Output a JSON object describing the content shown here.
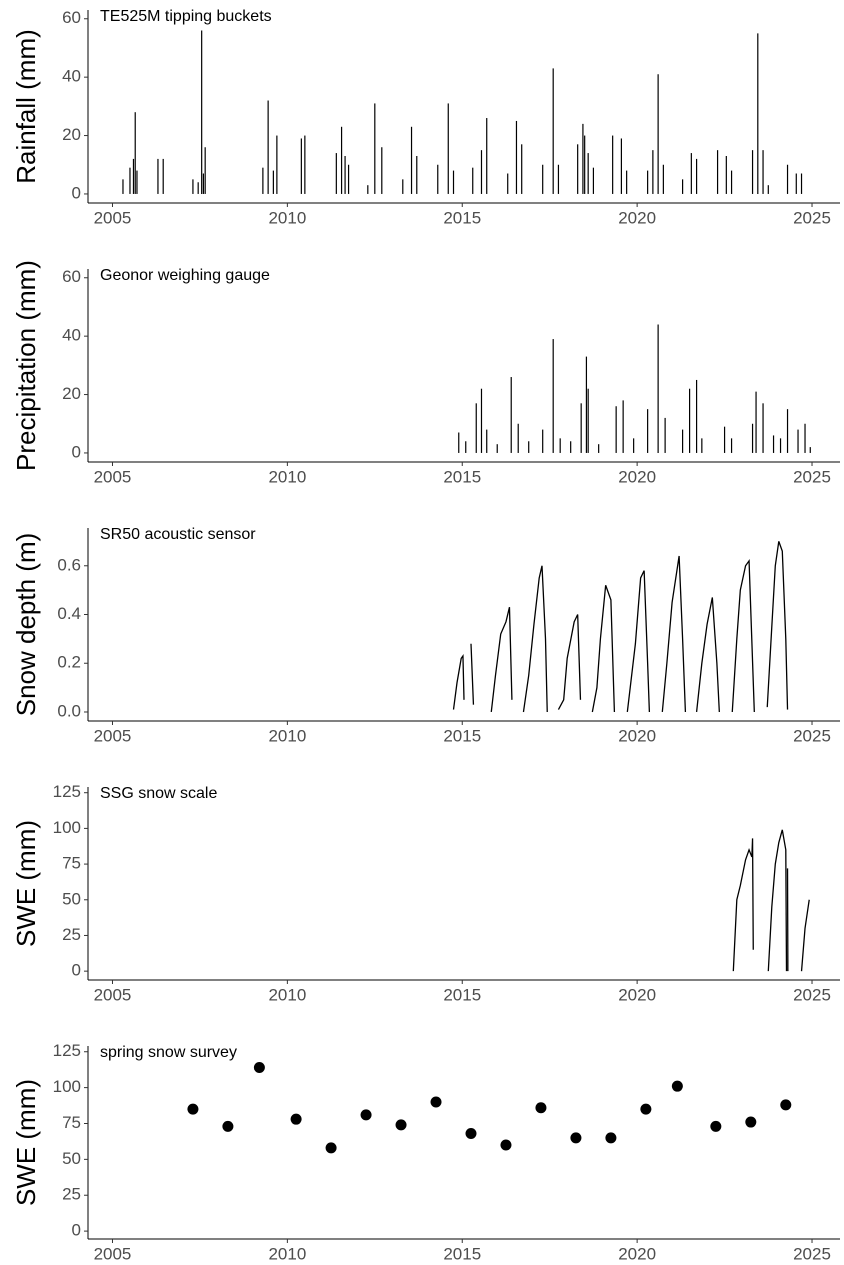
{
  "chart_data": [
    {
      "type": "spike",
      "annotation": "TE525M tipping buckets",
      "ylabel": "Rainfall (mm)",
      "color": "#000000",
      "x": [
        2005.3,
        2005.5,
        2005.6,
        2005.65,
        2005.7,
        2006.3,
        2006.45,
        2007.3,
        2007.45,
        2007.55,
        2007.6,
        2007.65,
        2009.3,
        2009.45,
        2009.6,
        2009.7,
        2010.4,
        2010.5,
        2011.4,
        2011.55,
        2011.65,
        2011.75,
        2012.3,
        2012.5,
        2012.7,
        2013.3,
        2013.55,
        2013.7,
        2014.3,
        2014.6,
        2014.75,
        2015.3,
        2015.55,
        2015.7,
        2016.3,
        2016.55,
        2016.7,
        2017.3,
        2017.6,
        2017.75,
        2018.3,
        2018.45,
        2018.5,
        2018.6,
        2018.75,
        2019.3,
        2019.55,
        2019.7,
        2020.3,
        2020.45,
        2020.6,
        2020.75,
        2021.3,
        2021.55,
        2021.7,
        2022.3,
        2022.55,
        2022.7,
        2023.3,
        2023.45,
        2023.6,
        2023.75,
        2024.3,
        2024.55,
        2024.7
      ],
      "values": [
        5,
        9,
        12,
        28,
        8,
        12,
        12,
        5,
        4,
        56,
        7,
        16,
        9,
        32,
        8,
        20,
        19,
        20,
        14,
        23,
        13,
        10,
        3,
        31,
        16,
        5,
        23,
        13,
        10,
        31,
        8,
        9,
        15,
        26,
        7,
        25,
        17,
        10,
        43,
        10,
        17,
        24,
        20,
        14,
        9,
        20,
        19,
        8,
        8,
        15,
        41,
        10,
        5,
        14,
        12,
        15,
        13,
        8,
        15,
        55,
        15,
        3,
        10,
        7,
        7
      ],
      "xlim": [
        2004.3,
        2025.8
      ],
      "xticks": [
        2005,
        2010,
        2015,
        2020,
        2025
      ],
      "ylim": [
        -3.1,
        63
      ],
      "yticks": [
        0,
        20,
        40,
        60
      ]
    },
    {
      "type": "spike",
      "annotation": "Geonor weighing gauge",
      "ylabel": "Precipitation (mm)",
      "color": "#000000",
      "x": [
        2014.9,
        2015.1,
        2015.4,
        2015.55,
        2015.7,
        2016.0,
        2016.4,
        2016.6,
        2016.9,
        2017.3,
        2017.6,
        2017.8,
        2018.1,
        2018.4,
        2018.55,
        2018.6,
        2018.9,
        2019.4,
        2019.6,
        2019.9,
        2020.3,
        2020.6,
        2020.8,
        2021.3,
        2021.5,
        2021.7,
        2021.85,
        2022.5,
        2022.7,
        2023.3,
        2023.4,
        2023.6,
        2023.9,
        2024.1,
        2024.3,
        2024.6,
        2024.8,
        2024.95
      ],
      "values": [
        7,
        4,
        17,
        22,
        8,
        3,
        26,
        10,
        4,
        8,
        39,
        5,
        4,
        17,
        33,
        22,
        3,
        16,
        18,
        5,
        15,
        44,
        12,
        8,
        22,
        25,
        5,
        9,
        5,
        10,
        21,
        17,
        6,
        5,
        15,
        8,
        10,
        2
      ],
      "xlim": [
        2004.3,
        2025.8
      ],
      "xticks": [
        2005,
        2010,
        2015,
        2020,
        2025
      ],
      "ylim": [
        -3.1,
        63
      ],
      "yticks": [
        0,
        20,
        40,
        60
      ]
    },
    {
      "type": "line",
      "annotation": "SR50 acoustic sensor",
      "ylabel": "Snow depth (m)",
      "color": "#000000",
      "x": [
        2014.75,
        2014.85,
        2014.97,
        2015.02,
        2015.05,
        null,
        2015.25,
        2015.32,
        null,
        2015.83,
        2015.95,
        2016.1,
        2016.25,
        2016.35,
        2016.42,
        null,
        2016.75,
        2016.9,
        2017.05,
        2017.2,
        2017.28,
        2017.38,
        2017.43,
        null,
        2017.75,
        2017.9,
        2018.0,
        2018.2,
        2018.3,
        2018.38,
        null,
        2018.72,
        2018.85,
        2018.95,
        2019.1,
        2019.25,
        2019.35,
        null,
        2019.72,
        2019.95,
        2020.1,
        2020.2,
        2020.3,
        2020.35,
        null,
        2020.72,
        2020.85,
        2021.0,
        2021.2,
        2021.3,
        2021.38,
        null,
        2021.7,
        2021.85,
        2022.0,
        2022.15,
        2022.28,
        2022.35,
        null,
        2022.72,
        2022.85,
        2022.95,
        2023.1,
        2023.2,
        2023.35,
        null,
        2023.72,
        2023.85,
        2023.95,
        2024.05,
        2024.15,
        2024.25,
        2024.3
      ],
      "values": [
        0.01,
        0.12,
        0.22,
        0.23,
        0.05,
        null,
        0.28,
        0.03,
        null,
        0.0,
        0.15,
        0.32,
        0.37,
        0.43,
        0.05,
        null,
        0.0,
        0.15,
        0.36,
        0.55,
        0.6,
        0.3,
        0.0,
        null,
        0.01,
        0.05,
        0.22,
        0.37,
        0.4,
        0.05,
        null,
        0.0,
        0.1,
        0.3,
        0.52,
        0.46,
        0.0,
        null,
        0.0,
        0.28,
        0.55,
        0.58,
        0.2,
        0.0,
        null,
        0.0,
        0.2,
        0.45,
        0.64,
        0.3,
        0.0,
        null,
        0.0,
        0.2,
        0.36,
        0.47,
        0.2,
        0.0,
        null,
        0.0,
        0.3,
        0.5,
        0.6,
        0.62,
        0.0,
        null,
        0.02,
        0.35,
        0.6,
        0.7,
        0.66,
        0.3,
        0.01
      ],
      "xlim": [
        2004.3,
        2025.8
      ],
      "xticks": [
        2005,
        2010,
        2015,
        2020,
        2025
      ],
      "ylim": [
        -0.037,
        0.755
      ],
      "yticks": [
        {
          "value": 0,
          "label": "0.0"
        },
        0.2,
        0.4,
        0.6
      ]
    },
    {
      "type": "line",
      "annotation": "SSG snow scale",
      "ylabel": "SWE (mm)",
      "color": "#000000",
      "x": [
        2022.75,
        2022.85,
        2022.95,
        2023.1,
        2023.2,
        2023.28,
        2023.3,
        2023.32,
        null,
        2023.75,
        2023.85,
        2023.95,
        2024.05,
        2024.15,
        2024.25,
        2024.27,
        null,
        2024.3,
        2024.31,
        null,
        2024.7,
        2024.8,
        2024.92
      ],
      "values": [
        0,
        50,
        60,
        78,
        85,
        80,
        93,
        15,
        null,
        0,
        45,
        75,
        90,
        99,
        85,
        0,
        null,
        72,
        0,
        null,
        0,
        30,
        50
      ],
      "xlim": [
        2004.3,
        2025.8
      ],
      "xticks": [
        2005,
        2010,
        2015,
        2020,
        2025
      ],
      "ylim": [
        -6.2,
        129
      ],
      "yticks": [
        0,
        25,
        50,
        75,
        100,
        125
      ]
    },
    {
      "type": "scatter",
      "annotation": "spring snow survey",
      "ylabel": "SWE (mm)",
      "color": "#000000",
      "x": [
        2007.3,
        2008.3,
        2009.2,
        2010.25,
        2011.25,
        2012.25,
        2013.25,
        2014.25,
        2015.25,
        2016.25,
        2017.25,
        2018.25,
        2019.25,
        2020.25,
        2021.15,
        2022.25,
        2023.25,
        2024.25
      ],
      "values": [
        85,
        73,
        114,
        78,
        58,
        81,
        74,
        90,
        68,
        60,
        86,
        65,
        65,
        85,
        101,
        73,
        76,
        88
      ],
      "xlim": [
        2004.3,
        2025.8
      ],
      "xticks": [
        2005,
        2010,
        2015,
        2020,
        2025
      ],
      "ylim": [
        -5.5,
        129
      ],
      "yticks": [
        0,
        25,
        50,
        75,
        100,
        125
      ]
    }
  ]
}
